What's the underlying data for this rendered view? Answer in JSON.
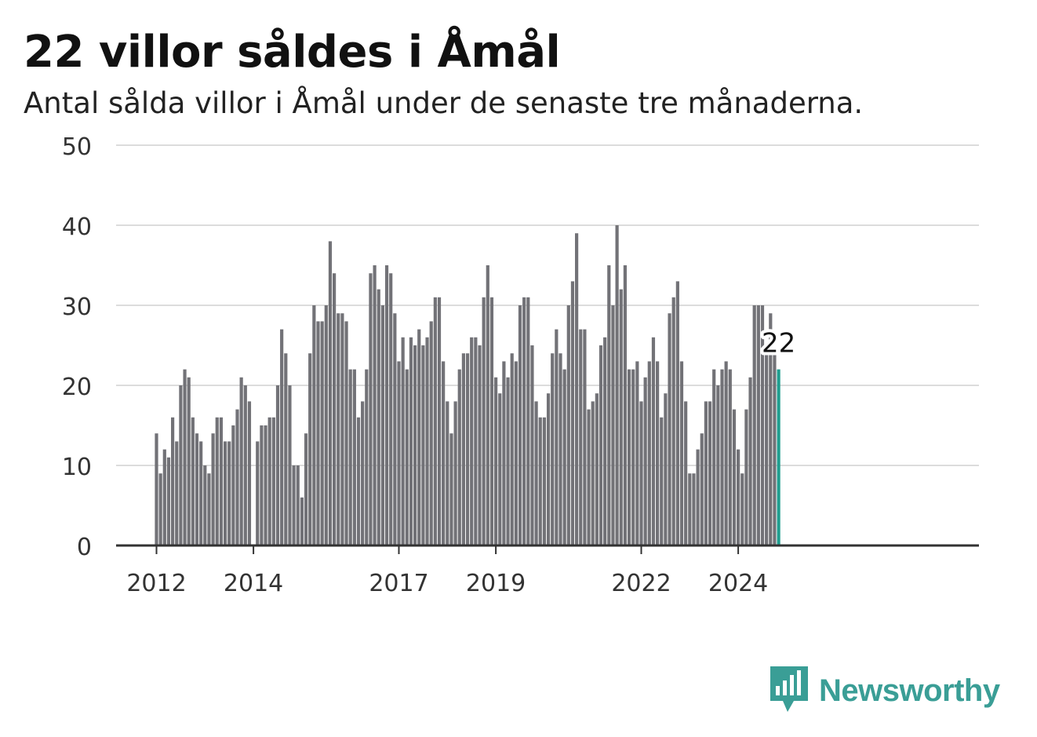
{
  "title": "22 villor såldes i Åmål",
  "subtitle": "Antal sålda villor i Åmål under de senaste tre månaderna.",
  "brand": {
    "name": "Newsworthy",
    "icon": "newsworthy-logo-icon",
    "color": "#3a9e96"
  },
  "colors": {
    "bar": "#727277",
    "highlight": "#1f9e8f",
    "grid": "#dcdcdc",
    "axis": "#333333"
  },
  "chart_data": {
    "type": "bar",
    "start": "2012-01",
    "frequency": "monthly",
    "values": [
      14,
      9,
      12,
      11,
      16,
      13,
      20,
      22,
      21,
      16,
      14,
      13,
      10,
      9,
      14,
      16,
      16,
      13,
      13,
      15,
      17,
      21,
      20,
      18,
      0,
      13,
      15,
      15,
      16,
      16,
      20,
      27,
      24,
      20,
      10,
      10,
      6,
      14,
      24,
      30,
      28,
      28,
      30,
      38,
      34,
      29,
      29,
      28,
      22,
      22,
      16,
      18,
      22,
      34,
      35,
      32,
      30,
      35,
      34,
      29,
      23,
      26,
      22,
      26,
      25,
      27,
      25,
      26,
      28,
      31,
      31,
      23,
      18,
      14,
      18,
      22,
      24,
      24,
      26,
      26,
      25,
      31,
      35,
      31,
      21,
      19,
      23,
      21,
      24,
      23,
      30,
      31,
      31,
      25,
      18,
      16,
      16,
      19,
      24,
      27,
      24,
      22,
      30,
      33,
      39,
      27,
      27,
      17,
      18,
      19,
      25,
      26,
      35,
      30,
      40,
      32,
      35,
      22,
      22,
      23,
      18,
      21,
      23,
      26,
      23,
      16,
      19,
      29,
      31,
      33,
      23,
      18,
      9,
      9,
      12,
      14,
      18,
      18,
      22,
      20,
      22,
      23,
      22,
      17,
      12,
      9,
      17,
      21,
      30,
      30,
      30,
      24,
      29,
      24,
      22
    ],
    "highlight_last": true,
    "highlight_label": "22",
    "yticks": [
      0,
      10,
      20,
      30,
      40,
      50
    ],
    "ylim": [
      0,
      50
    ],
    "xticks": [
      "2012",
      "2014",
      "2017",
      "2019",
      "2022",
      "2024"
    ],
    "grid": true
  }
}
